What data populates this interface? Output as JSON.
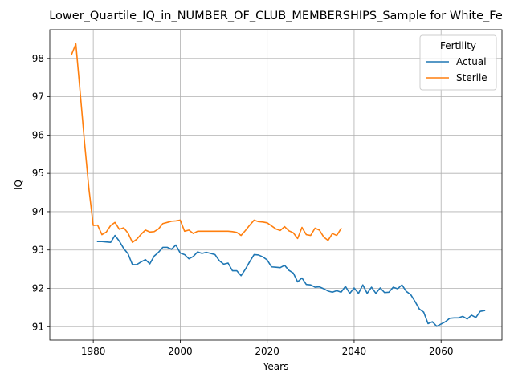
{
  "chart_data": {
    "type": "line",
    "title": "Lower_Quartile_IQ_in_NUMBER_OF_CLUB_MEMBERSHIPS_Sample for White_Fe",
    "xlabel": "Years",
    "ylabel": "IQ",
    "xlim": [
      1970,
      2074
    ],
    "ylim": [
      90.65,
      98.75
    ],
    "x_ticks": [
      1980,
      2000,
      2020,
      2040,
      2060
    ],
    "y_ticks": [
      91,
      92,
      93,
      94,
      95,
      96,
      97,
      98
    ],
    "grid": true,
    "legend": {
      "title": "Fertility",
      "placement": "top-right"
    },
    "series": [
      {
        "name": "Actual",
        "color": "#1f77b4",
        "x": [
          1981,
          1982,
          1983,
          1984,
          1985,
          1986,
          1987,
          1988,
          1989,
          1990,
          1991,
          1992,
          1993,
          1994,
          1995,
          1996,
          1997,
          1998,
          1999,
          2000,
          2001,
          2002,
          2003,
          2004,
          2005,
          2006,
          2007,
          2008,
          2009,
          2010,
          2011,
          2012,
          2013,
          2014,
          2015,
          2016,
          2017,
          2018,
          2019,
          2020,
          2021,
          2022,
          2023,
          2024,
          2025,
          2026,
          2027,
          2028,
          2029,
          2030,
          2031,
          2032,
          2033,
          2034,
          2035,
          2036,
          2037,
          2038,
          2039,
          2040,
          2041,
          2042,
          2043,
          2044,
          2045,
          2046,
          2047,
          2048,
          2049,
          2050,
          2051,
          2052,
          2053,
          2054,
          2055,
          2056,
          2057,
          2058,
          2059,
          2060,
          2061,
          2062,
          2063,
          2064,
          2065,
          2066,
          2067,
          2068,
          2069,
          2070
        ],
        "values": [
          93.22,
          93.22,
          93.21,
          93.2,
          93.38,
          93.23,
          93.04,
          92.9,
          92.62,
          92.62,
          92.69,
          92.75,
          92.64,
          92.84,
          92.94,
          93.07,
          93.07,
          93.02,
          93.13,
          92.92,
          92.88,
          92.77,
          92.83,
          92.95,
          92.91,
          92.94,
          92.91,
          92.88,
          92.72,
          92.63,
          92.66,
          92.46,
          92.46,
          92.33,
          92.5,
          92.7,
          92.88,
          92.87,
          92.82,
          92.74,
          92.56,
          92.55,
          92.54,
          92.6,
          92.47,
          92.4,
          92.17,
          92.27,
          92.1,
          92.09,
          92.03,
          92.04,
          91.99,
          91.93,
          91.9,
          91.94,
          91.9,
          92.05,
          91.87,
          92.01,
          91.87,
          92.09,
          91.87,
          92.03,
          91.87,
          92.01,
          91.89,
          91.9,
          92.03,
          91.99,
          92.09,
          91.92,
          91.84,
          91.66,
          91.46,
          91.38,
          91.08,
          91.13,
          91.01,
          91.07,
          91.13,
          91.22,
          91.23,
          91.23,
          91.27,
          91.2,
          91.3,
          91.24,
          91.4,
          91.42
        ]
      },
      {
        "name": "Sterile",
        "color": "#ff7f0e",
        "x": [
          1975,
          1976,
          1977,
          1978,
          1979,
          1980,
          1981,
          1982,
          1983,
          1984,
          1985,
          1986,
          1987,
          1988,
          1989,
          1990,
          1991,
          1992,
          1993,
          1994,
          1995,
          1996,
          1997,
          1998,
          1999,
          2000,
          2001,
          2002,
          2003,
          2004,
          2005,
          2006,
          2007,
          2008,
          2009,
          2010,
          2011,
          2012,
          2013,
          2014,
          2015,
          2016,
          2017,
          2018,
          2019,
          2020,
          2021,
          2022,
          2023,
          2024,
          2025,
          2026,
          2027,
          2028,
          2029,
          2030,
          2031,
          2032,
          2033,
          2034,
          2035,
          2036,
          2037
        ],
        "values": [
          98.1,
          98.38,
          97.1,
          95.8,
          94.6,
          93.64,
          93.65,
          93.4,
          93.47,
          93.64,
          93.72,
          93.54,
          93.58,
          93.44,
          93.2,
          93.28,
          93.41,
          93.52,
          93.47,
          93.48,
          93.55,
          93.69,
          93.72,
          93.75,
          93.76,
          93.78,
          93.49,
          93.52,
          93.43,
          93.49,
          93.49,
          93.49,
          93.49,
          93.49,
          93.49,
          93.49,
          93.49,
          93.48,
          93.46,
          93.38,
          93.51,
          93.65,
          93.78,
          93.74,
          93.73,
          93.71,
          93.63,
          93.55,
          93.51,
          93.61,
          93.5,
          93.45,
          93.3,
          93.59,
          93.4,
          93.38,
          93.57,
          93.52,
          93.34,
          93.25,
          93.43,
          93.38,
          93.56
        ]
      }
    ]
  }
}
